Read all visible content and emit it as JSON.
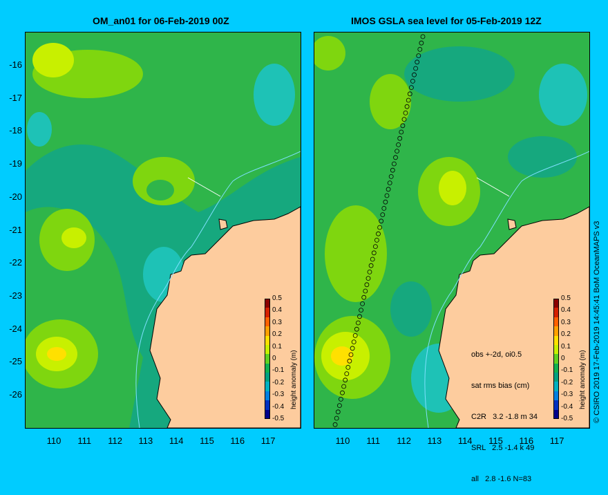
{
  "left_panel": {
    "title": "OM_an01 for 06-Feb-2019 00Z"
  },
  "right_panel": {
    "title": "IMOS GSLA sea level  for 05-Feb-2019 12Z"
  },
  "y_ticks": [
    "-16",
    "-17",
    "-18",
    "-19",
    "-20",
    "-21",
    "-22",
    "-23",
    "-24",
    "-25",
    "-26"
  ],
  "x_ticks": [
    "110",
    "111",
    "112",
    "113",
    "114",
    "115",
    "116",
    "117"
  ],
  "colorbar": {
    "label": "height anomaly (m)",
    "ticks": [
      "0.5",
      "0.4",
      "0.3",
      "0.2",
      "0.1",
      "0",
      "-0.1",
      "-0.2",
      "-0.3",
      "-0.4",
      "-0.5"
    ],
    "colors": [
      "#8b0000",
      "#d42000",
      "#ff6000",
      "#ffa000",
      "#ffe000",
      "#c8f000",
      "#60d020",
      "#10b050",
      "#00a080",
      "#00b0c0",
      "#0080e0",
      "#0030c0",
      "#00008b"
    ]
  },
  "obs_stats": {
    "line1": "obs +-2d, oi0.5",
    "line2": "sat rms bias (cm)",
    "line3": "C2R   3.2 -1.8 m 34",
    "line4": "SRL   2.5 -1.4 k 49",
    "line5": "all   2.8 -1.6 N=83"
  },
  "credit": "© CSIRO 2019   17-Feb-2019 14:45:41 BoM OceanMAPS v3",
  "colors": {
    "background": "#00ccff",
    "land": "#fdcc9e",
    "ocean_mid": "#2fb54a",
    "ocean_high": "#7fd60f",
    "ocean_low": "#16a87e",
    "ocean_lower": "#1ec2b6"
  }
}
